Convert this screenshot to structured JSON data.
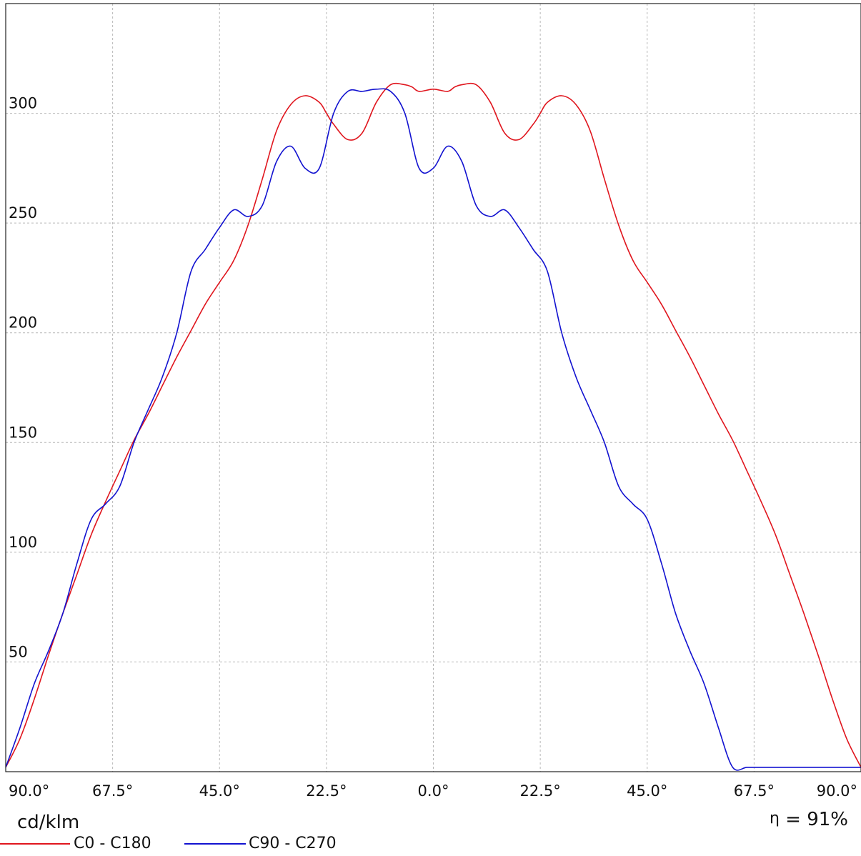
{
  "chart_data": {
    "type": "line",
    "unit_label": "cd/klm",
    "efficiency": {
      "symbol": "η",
      "text": "= 91%"
    },
    "x_tick_labels": [
      "90.0°",
      "67.5°",
      "45.0°",
      "22.5°",
      "0.0°",
      "22.5°",
      "45.0°",
      "67.5°",
      "90.0°"
    ],
    "x_tick_values": [
      -90,
      -67.5,
      -45,
      -22.5,
      0,
      22.5,
      45,
      67.5,
      90
    ],
    "xlim": [
      -90,
      90
    ],
    "y_ticks": [
      50,
      100,
      150,
      200,
      250,
      300,
      350
    ],
    "ylim": [
      0,
      350
    ],
    "grid": true,
    "legend_position": "bottom-left",
    "series": [
      {
        "name": "C0 - C180",
        "color": "#e0161e",
        "x": [
          -90,
          -87,
          -84,
          -81,
          -78,
          -75,
          -72,
          -69,
          -66,
          -63,
          -60,
          -57,
          -54,
          -51,
          -48,
          -45,
          -42,
          -39,
          -36,
          -33,
          -30,
          -27,
          -24,
          -22.5,
          -21,
          -18,
          -15,
          -12,
          -9,
          -6,
          -4.5,
          -3,
          0,
          3,
          4.5,
          6,
          9,
          12,
          15,
          18,
          21,
          22.5,
          24,
          27,
          30,
          33,
          36,
          39,
          42,
          45,
          48,
          51,
          54,
          57,
          60,
          63,
          66,
          69,
          72,
          75,
          78,
          81,
          84,
          87,
          90
        ],
        "values": [
          2,
          15,
          33,
          53,
          72,
          90,
          108,
          123,
          137,
          151,
          163,
          176,
          189,
          201,
          213,
          223,
          233,
          249,
          270,
          292,
          304,
          308,
          305,
          300,
          295,
          288,
          291,
          305,
          313,
          313,
          312,
          310,
          311,
          310,
          312,
          313,
          313,
          305,
          291,
          288,
          295,
          300,
          305,
          308,
          304,
          292,
          270,
          249,
          233,
          223,
          213,
          201,
          189,
          176,
          163,
          151,
          137,
          123,
          108,
          90,
          72,
          53,
          33,
          15,
          2
        ]
      },
      {
        "name": "C90 - C270",
        "color": "#1212d0",
        "x": [
          -90,
          -87,
          -84,
          -81,
          -78,
          -75,
          -72,
          -69,
          -66,
          -63,
          -60,
          -57,
          -54,
          -51,
          -48,
          -45,
          -42,
          -39,
          -36,
          -33,
          -30,
          -27,
          -24,
          -21,
          -18,
          -15,
          -12,
          -9,
          -6,
          -3,
          0,
          3,
          6,
          9,
          12,
          15,
          18,
          21,
          24,
          27,
          30,
          33,
          36,
          39,
          42,
          45,
          48,
          51,
          54,
          57,
          60,
          63,
          66,
          69,
          72,
          75,
          78,
          81,
          84,
          87,
          90
        ],
        "values": [
          2,
          20,
          40,
          55,
          72,
          95,
          115,
          122,
          130,
          150,
          165,
          180,
          200,
          228,
          238,
          248,
          256,
          253,
          258,
          278,
          285,
          275,
          275,
          300,
          310,
          310,
          311,
          310,
          300,
          275,
          275,
          285,
          278,
          258,
          253,
          256,
          248,
          238,
          228,
          200,
          180,
          165,
          150,
          130,
          122,
          115,
          95,
          72,
          55,
          40,
          20,
          2,
          2,
          2,
          2,
          2,
          2,
          2,
          2,
          2,
          2
        ]
      }
    ]
  }
}
